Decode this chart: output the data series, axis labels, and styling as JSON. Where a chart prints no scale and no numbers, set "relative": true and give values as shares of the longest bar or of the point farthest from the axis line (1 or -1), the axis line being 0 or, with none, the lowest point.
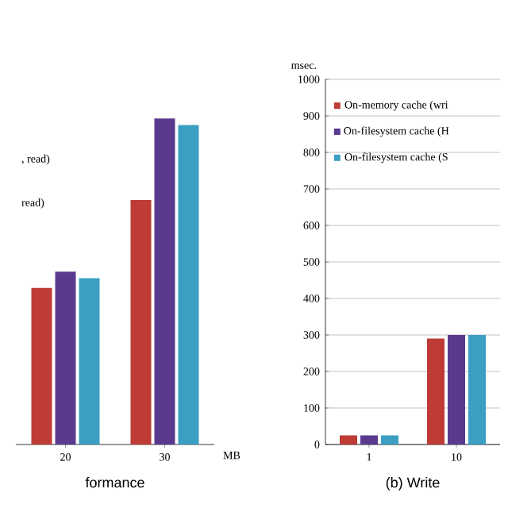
{
  "chart_data": [
    {
      "type": "bar",
      "title": "formance",
      "xlabel": "MB",
      "categories": [
        "20",
        "30"
      ],
      "relative": true,
      "grid": false,
      "legend": false,
      "series": [
        {
          "color": "#be3b36",
          "values": [
            0.48,
            0.75
          ]
        },
        {
          "color": "#5a3a8e",
          "values": [
            0.53,
            1
          ]
        },
        {
          "color": "#3a9fc2",
          "values": [
            0.51,
            0.98
          ]
        }
      ],
      "annotations": [
        ", read)",
        "read)"
      ]
    },
    {
      "type": "bar",
      "title": "(b) Write",
      "ylabel": "msec.",
      "categories": [
        "1",
        "10"
      ],
      "ylim": [
        0,
        1000
      ],
      "yticks": [
        0,
        100,
        200,
        300,
        400,
        500,
        600,
        700,
        800,
        900,
        1000
      ],
      "grid": "y",
      "legend": "top left",
      "series": [
        {
          "name": "On-memory cache (wri",
          "color": "#be3b36",
          "values": [
            25,
            290
          ]
        },
        {
          "name": "On-filesystem cache (H",
          "color": "#5a3a8e",
          "values": [
            25,
            300
          ]
        },
        {
          "name": "On-filesystem cache (S",
          "color": "#3a9fc2",
          "values": [
            25,
            300
          ]
        }
      ]
    }
  ]
}
